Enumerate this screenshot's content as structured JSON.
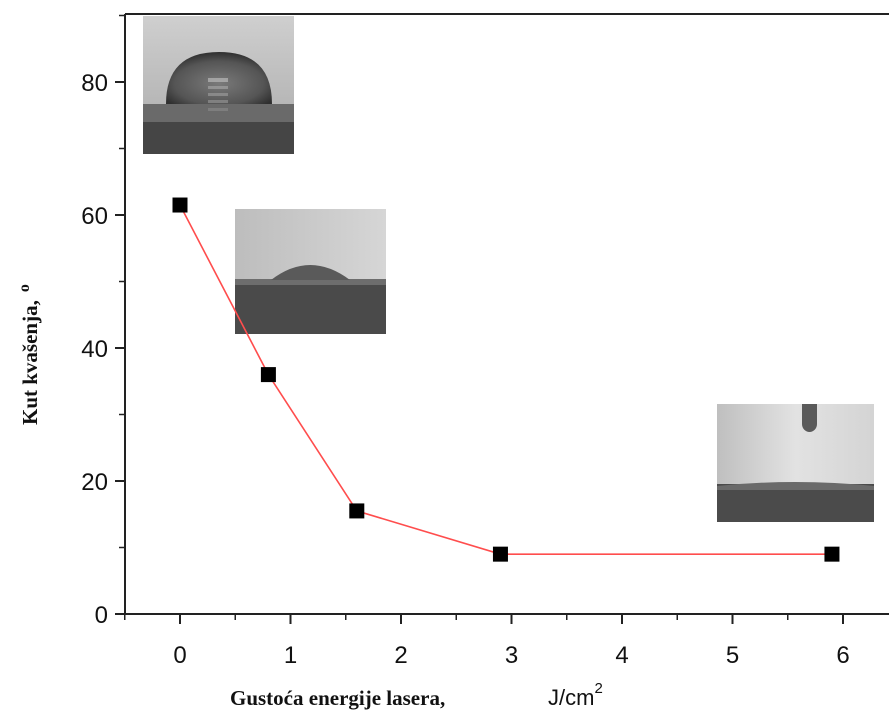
{
  "chart_data": {
    "type": "line",
    "x": [
      0,
      0.8,
      1.6,
      2.9,
      5.9
    ],
    "series": [
      {
        "values": [
          61.5,
          36,
          15.5,
          9,
          9
        ]
      }
    ],
    "xlabel": "Gustoća energije lasera,",
    "xlabel_unit": "J/cm",
    "xlabel_unit_sup": "2",
    "ylabel": "Kut kvašenja,",
    "ylabel_unit": "o",
    "xlim": [
      -0.5,
      6.4
    ],
    "ylim": [
      0,
      90
    ],
    "xticks": [
      "0",
      "1",
      "2",
      "3",
      "4",
      "5",
      "6"
    ],
    "yticks": [
      "0",
      "20",
      "40",
      "60",
      "80"
    ],
    "grid": false,
    "legend": "none",
    "line_color": "#ff4d4d",
    "marker_color": "#000000",
    "marker_shape": "square",
    "insets": [
      {
        "name": "droplet-image-high-angle",
        "attached_to_x": 0,
        "attached_to_y": 61.5
      },
      {
        "name": "droplet-image-medium-angle",
        "attached_to_x": 0.8,
        "attached_to_y": 36
      },
      {
        "name": "droplet-image-low-angle",
        "attached_to_x": 5.9,
        "attached_to_y": 9
      }
    ]
  }
}
